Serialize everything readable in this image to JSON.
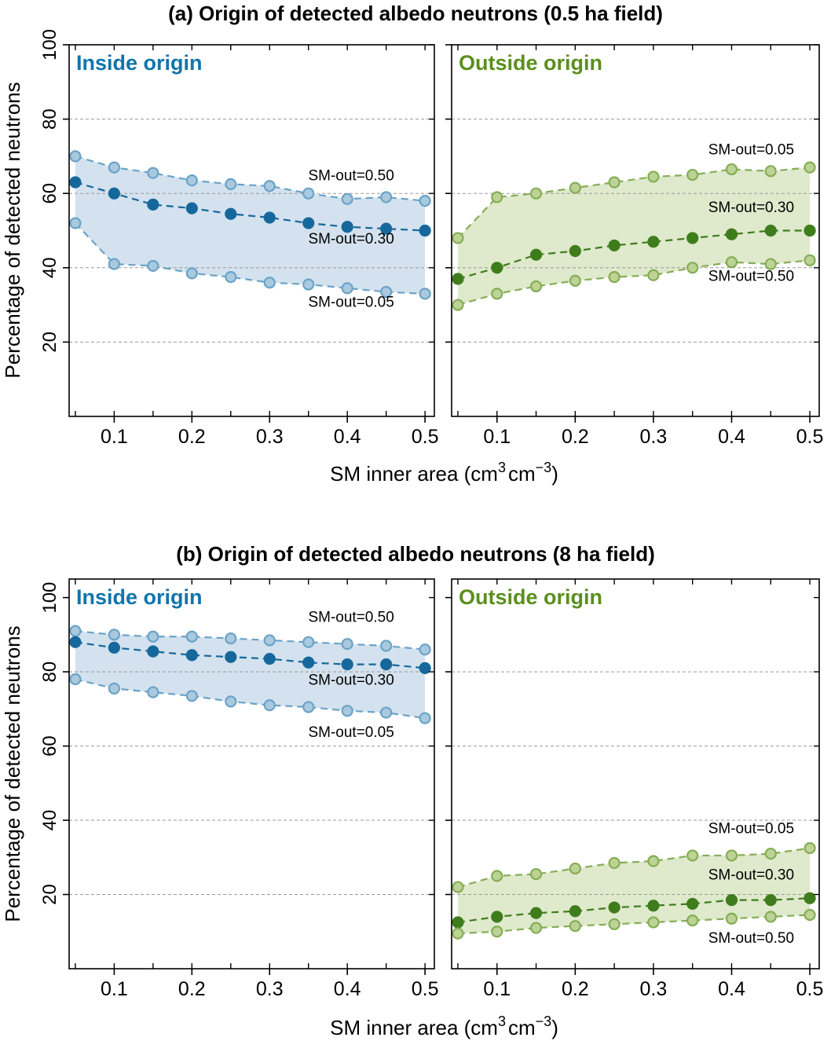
{
  "figure": {
    "background": "#ffffff"
  },
  "panels": [
    {
      "title": "(a) Origin of detected albedo neutrons (0.5 ha field)",
      "ylabel": "Percentage of detected neutrons",
      "xlabel_parts": [
        "SM inner area (cm",
        "3",
        "cm",
        "−3",
        ")"
      ]
    },
    {
      "title": "(b) Origin of detected albedo neutrons (8 ha field)",
      "ylabel": "Percentage of detected neutrons",
      "xlabel_parts": [
        "SM inner area (cm",
        "3",
        "cm",
        "−3",
        ")"
      ]
    }
  ],
  "chart_data": [
    {
      "id": "a-inside",
      "type": "line",
      "panel": "a",
      "title_label": "Inside origin",
      "label_color": "#1074ad",
      "color_dark": "#16689c",
      "color_light": "#6ba3c8",
      "marker_fill": "#a9c9de",
      "band_color": "#d3e2ee",
      "x": [
        0.05,
        0.1,
        0.15,
        0.2,
        0.25,
        0.3,
        0.35,
        0.4,
        0.45,
        0.5
      ],
      "xlim": [
        0.042,
        0.512
      ],
      "ylim": [
        0,
        100
      ],
      "grid_y": [
        20,
        40,
        60,
        80
      ],
      "xticks": {
        "values": [
          0.1,
          0.2,
          0.3,
          0.4,
          0.5
        ],
        "labels": [
          "0.1",
          "0.2",
          "0.3",
          "0.4",
          "0.5"
        ]
      },
      "yticks": {
        "values": [
          20,
          40,
          60,
          80,
          100
        ],
        "labels": [
          "20",
          "40",
          "60",
          "80",
          "100"
        ]
      },
      "show_y_labels": true,
      "series": [
        {
          "name": "SM-out=0.50",
          "role": "upper",
          "values": [
            70,
            67,
            65.5,
            63.5,
            62.5,
            62,
            60,
            58.5,
            59,
            58
          ],
          "label_x": 0.405,
          "label_y": 63.5
        },
        {
          "name": "SM-out=0.30",
          "role": "middle",
          "values": [
            63,
            60,
            57,
            56,
            54.5,
            53.5,
            52,
            51,
            50.5,
            50
          ],
          "label_x": 0.405,
          "label_y": 46.5
        },
        {
          "name": "SM-out=0.05",
          "role": "lower",
          "values": [
            52,
            41,
            40.5,
            38.5,
            37.5,
            36,
            35.5,
            34.5,
            33.5,
            33
          ],
          "label_x": 0.405,
          "label_y": 29.5
        }
      ]
    },
    {
      "id": "a-outside",
      "type": "line",
      "panel": "a",
      "title_label": "Outside origin",
      "label_color": "#5a8f1d",
      "color_dark": "#3f7d1c",
      "color_light": "#85ad55",
      "marker_fill": "#bcd395",
      "band_color": "#dfe9cc",
      "x": [
        0.05,
        0.1,
        0.15,
        0.2,
        0.25,
        0.3,
        0.35,
        0.4,
        0.45,
        0.5
      ],
      "xlim": [
        0.042,
        0.512
      ],
      "ylim": [
        0,
        100
      ],
      "grid_y": [
        20,
        40,
        60,
        80
      ],
      "xticks": {
        "values": [
          0.1,
          0.2,
          0.3,
          0.4,
          0.5
        ],
        "labels": [
          "0.1",
          "0.2",
          "0.3",
          "0.4",
          "0.5"
        ]
      },
      "yticks": {
        "values": [
          20,
          40,
          60,
          80,
          100
        ],
        "labels": [
          "20",
          "40",
          "60",
          "80",
          "100"
        ]
      },
      "show_y_labels": false,
      "series": [
        {
          "name": "SM-out=0.05",
          "role": "upper",
          "values": [
            48,
            59,
            60,
            61.5,
            63,
            64.5,
            65,
            66.5,
            66,
            67
          ],
          "label_x": 0.425,
          "label_y": 70.5
        },
        {
          "name": "SM-out=0.30",
          "role": "middle",
          "values": [
            37,
            40,
            43.5,
            44.5,
            46,
            47,
            48,
            49,
            50,
            50
          ],
          "label_x": 0.425,
          "label_y": 55
        },
        {
          "name": "SM-out=0.50",
          "role": "lower",
          "values": [
            30,
            33,
            35,
            36.5,
            37.5,
            38,
            40,
            41.5,
            41,
            42
          ],
          "label_x": 0.425,
          "label_y": 36.5
        }
      ]
    },
    {
      "id": "b-inside",
      "type": "line",
      "panel": "b",
      "title_label": "Inside origin",
      "label_color": "#1074ad",
      "color_dark": "#16689c",
      "color_light": "#6ba3c8",
      "marker_fill": "#a9c9de",
      "band_color": "#d3e2ee",
      "x": [
        0.05,
        0.1,
        0.15,
        0.2,
        0.25,
        0.3,
        0.35,
        0.4,
        0.45,
        0.5
      ],
      "xlim": [
        0.042,
        0.512
      ],
      "ylim": [
        0,
        105
      ],
      "grid_y": [
        20,
        40,
        60,
        80
      ],
      "xticks": {
        "values": [
          0.1,
          0.2,
          0.3,
          0.4,
          0.5
        ],
        "labels": [
          "0.1",
          "0.2",
          "0.3",
          "0.4",
          "0.5"
        ]
      },
      "yticks": {
        "values": [
          20,
          40,
          60,
          80,
          100
        ],
        "labels": [
          "20",
          "40",
          "60",
          "80",
          "100"
        ]
      },
      "show_y_labels": true,
      "series": [
        {
          "name": "SM-out=0.50",
          "role": "upper",
          "values": [
            91,
            90,
            89.5,
            89.5,
            89,
            88.5,
            88,
            87.5,
            87,
            86
          ],
          "label_x": 0.405,
          "label_y": 93.5
        },
        {
          "name": "SM-out=0.30",
          "role": "middle",
          "values": [
            88,
            86.5,
            85.5,
            84.5,
            84,
            83.5,
            82.5,
            82,
            82,
            81
          ],
          "label_x": 0.405,
          "label_y": 76.5
        },
        {
          "name": "SM-out=0.05",
          "role": "lower",
          "values": [
            78,
            75.5,
            74.5,
            73.5,
            72,
            71,
            70.5,
            69.5,
            69,
            67.5
          ],
          "label_x": 0.405,
          "label_y": 62.5
        }
      ]
    },
    {
      "id": "b-outside",
      "type": "line",
      "panel": "b",
      "title_label": "Outside origin",
      "label_color": "#5a8f1d",
      "color_dark": "#3f7d1c",
      "color_light": "#85ad55",
      "marker_fill": "#bcd395",
      "band_color": "#dfe9cc",
      "x": [
        0.05,
        0.1,
        0.15,
        0.2,
        0.25,
        0.3,
        0.35,
        0.4,
        0.45,
        0.5
      ],
      "xlim": [
        0.042,
        0.512
      ],
      "ylim": [
        0,
        105
      ],
      "grid_y": [
        20,
        40,
        60,
        80
      ],
      "xticks": {
        "values": [
          0.1,
          0.2,
          0.3,
          0.4,
          0.5
        ],
        "labels": [
          "0.1",
          "0.2",
          "0.3",
          "0.4",
          "0.5"
        ]
      },
      "yticks": {
        "values": [
          20,
          40,
          60,
          80,
          100
        ],
        "labels": [
          "20",
          "40",
          "60",
          "80",
          "100"
        ]
      },
      "show_y_labels": false,
      "series": [
        {
          "name": "SM-out=0.05",
          "role": "upper",
          "values": [
            22,
            25,
            25.5,
            27,
            28.5,
            29,
            30.5,
            30.5,
            31,
            32.5
          ],
          "label_x": 0.425,
          "label_y": 36.5
        },
        {
          "name": "SM-out=0.30",
          "role": "middle",
          "values": [
            12.5,
            14,
            15,
            15.5,
            16.5,
            17,
            17.5,
            18.5,
            18.5,
            19
          ],
          "label_x": 0.425,
          "label_y": 24
        },
        {
          "name": "SM-out=0.50",
          "role": "lower",
          "values": [
            9.5,
            10,
            11,
            11.5,
            12,
            12.5,
            13,
            13.5,
            14,
            14.5
          ],
          "label_x": 0.425,
          "label_y": 7
        }
      ]
    }
  ]
}
